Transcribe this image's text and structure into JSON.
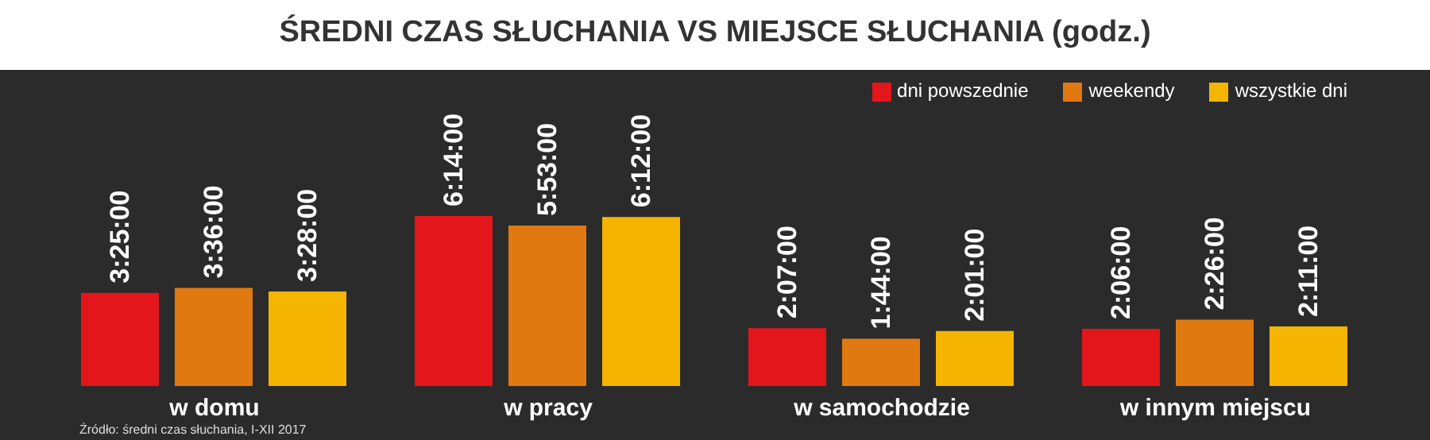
{
  "chart_data": {
    "type": "bar",
    "title": "ŚREDNI CZAS SŁUCHANIA VS MIEJSCE SŁUCHANIA (godz.)",
    "categories": [
      "w domu",
      "w pracy",
      "w samochodzie",
      "w innym miejscu"
    ],
    "series": [
      {
        "name": "dni powszednie",
        "color": "#e3161b",
        "values": [
          3.4166667,
          6.2333333,
          2.1166667,
          2.1
        ],
        "value_labels": [
          "3:25:00",
          "6:14:00",
          "2:07:00",
          "2:06:00"
        ]
      },
      {
        "name": "weekendy",
        "color": "#e07a10",
        "values": [
          3.6,
          5.8833333,
          1.7333333,
          2.4333333
        ],
        "value_labels": [
          "3:36:00",
          "5:53:00",
          "1:44:00",
          "2:26:00"
        ]
      },
      {
        "name": "wszystkie dni",
        "color": "#f4b400",
        "values": [
          3.4666667,
          6.2,
          2.0166667,
          2.1833333
        ],
        "value_labels": [
          "3:28:00",
          "6:12:00",
          "2:01:00",
          "2:11:00"
        ]
      }
    ],
    "legend": "top right",
    "annotations": [
      "Źródło: średni czas słuchania, I-XII 2017"
    ]
  }
}
